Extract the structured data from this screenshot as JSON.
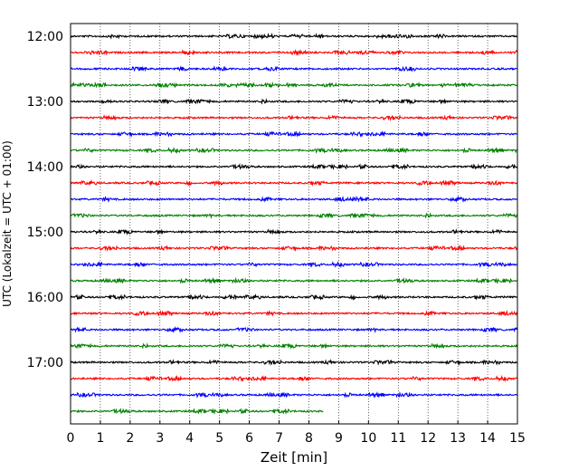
{
  "chart_data": {
    "type": "line",
    "title": "",
    "xlabel": "Zeit  [min]",
    "ylabel": "UTC (Lokalzeit = UTC + 01:00)",
    "xlim": [
      0,
      15
    ],
    "x_ticks": [
      "0",
      "1",
      "2",
      "3",
      "4",
      "5",
      "6",
      "7",
      "8",
      "9",
      "10",
      "11",
      "12",
      "13",
      "14",
      "15"
    ],
    "y_ticks": [
      "12:00",
      "13:00",
      "14:00",
      "15:00",
      "16:00",
      "17:00"
    ],
    "grid": "vertical-dotted",
    "trace_interval_min": 15,
    "trace_colors": [
      "#000000",
      "#ff0000",
      "#0000ff",
      "#008000"
    ],
    "series": [
      {
        "start": "12:00",
        "end_min": 15
      },
      {
        "start": "12:15",
        "end_min": 15
      },
      {
        "start": "12:30",
        "end_min": 15
      },
      {
        "start": "12:45",
        "end_min": 15
      },
      {
        "start": "13:00",
        "end_min": 15
      },
      {
        "start": "13:15",
        "end_min": 15
      },
      {
        "start": "13:30",
        "end_min": 15
      },
      {
        "start": "13:45",
        "end_min": 15
      },
      {
        "start": "14:00",
        "end_min": 15
      },
      {
        "start": "14:15",
        "end_min": 15
      },
      {
        "start": "14:30",
        "end_min": 15
      },
      {
        "start": "14:45",
        "end_min": 15
      },
      {
        "start": "15:00",
        "end_min": 15
      },
      {
        "start": "15:15",
        "end_min": 15
      },
      {
        "start": "15:30",
        "end_min": 15
      },
      {
        "start": "15:45",
        "end_min": 15
      },
      {
        "start": "16:00",
        "end_min": 15
      },
      {
        "start": "16:15",
        "end_min": 15
      },
      {
        "start": "16:30",
        "end_min": 15
      },
      {
        "start": "16:45",
        "end_min": 15
      },
      {
        "start": "17:00",
        "end_min": 15
      },
      {
        "start": "17:15",
        "end_min": 15
      },
      {
        "start": "17:30",
        "end_min": 15
      },
      {
        "start": "17:45",
        "end_min": 8.5
      }
    ]
  }
}
